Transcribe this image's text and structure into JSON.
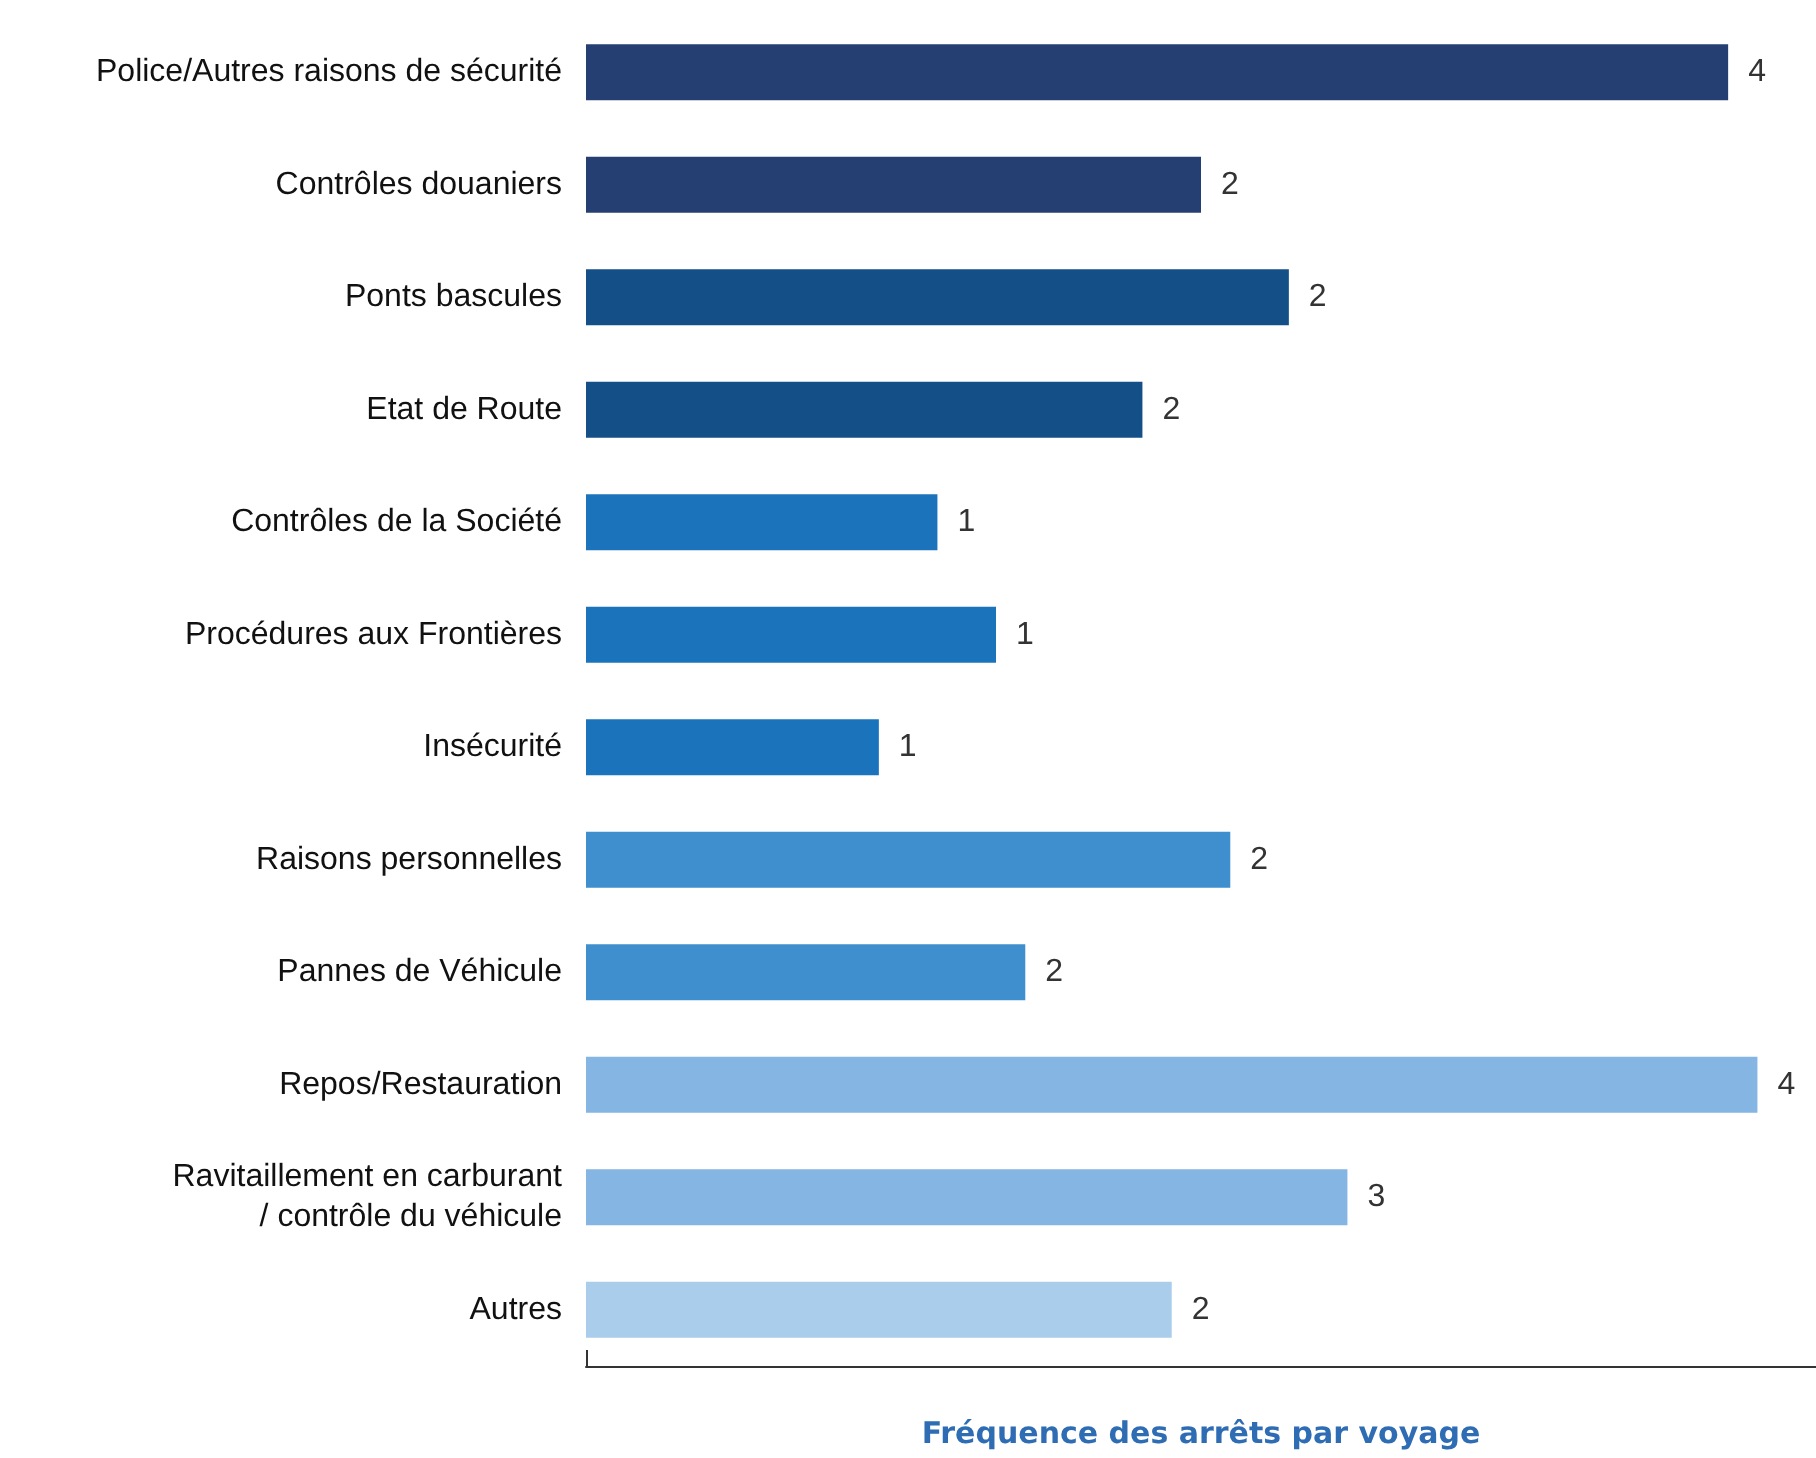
{
  "chart_data": {
    "type": "bar",
    "orientation": "horizontal",
    "xlabel": "Fréquence des arrêts par voyage",
    "categories": [
      "Police/Autres raisons de sécurité",
      "Contrôles douaniers",
      "Ponts bascules",
      "Etat de Route",
      "Contrôles de la Société",
      "Procédures aux Frontières",
      "Insécurité",
      "Raisons personnelles",
      "Pannes de Véhicule",
      "Repos/Restauration",
      "Ravitaillement en carburant\n/ contrôle du véhicule",
      "Autres"
    ],
    "values": [
      3.9,
      2.1,
      2.4,
      1.9,
      1.2,
      1.4,
      1.0,
      2.2,
      1.5,
      4.0,
      2.6,
      2.0
    ],
    "value_labels": [
      "4",
      "2",
      "2",
      "2",
      "1",
      "1",
      "1",
      "2",
      "2",
      "4",
      "3",
      "2"
    ],
    "colors": [
      "#263f72",
      "#263f72",
      "#154f88",
      "#154f88",
      "#1b74bb",
      "#1b74bb",
      "#1b74bb",
      "#3f8ecd",
      "#3f8ecd",
      "#84b5e3",
      "#84b5e3",
      "#abcdec"
    ],
    "xlim": [
      0,
      4.2
    ]
  }
}
